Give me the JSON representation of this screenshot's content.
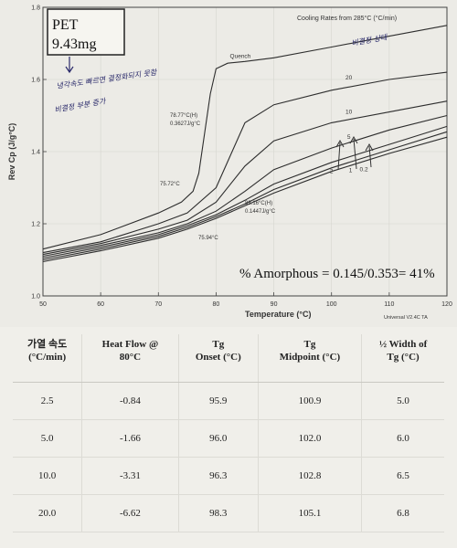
{
  "chart_data": {
    "type": "line",
    "title": "Cooling Rates from 285°C (°C/min)",
    "xlabel": "Temperature (°C)",
    "ylabel": "Rev Cp (J/g°C)",
    "xlim": [
      50,
      120
    ],
    "ylim": [
      1.0,
      1.8
    ],
    "x_ticks": [
      "50",
      "60",
      "70",
      "80",
      "90",
      "100",
      "110",
      "120"
    ],
    "y_ticks": [
      "1.0",
      "1.2",
      "1.4",
      "1.6",
      "1.8"
    ],
    "footer": "Universal V2.4C TA",
    "sample_box": {
      "line1": "PET",
      "line2": "9.43mg"
    },
    "handwritten_notes": [
      "냉각속도 빠르면 결정화되지 못함",
      "비결정 부분 증가"
    ],
    "quench_note": "비결정 상태",
    "amorphous_text": "% Amorphous = 0.145/0.353= 41%",
    "annotations": {
      "tg_quench": "78.77°C(H)",
      "tg_quench_dcp": "0.3627J/g°C",
      "onset_quench": "75.72°C",
      "tg_slow": "83.16°C(H)",
      "tg_slow_dcp": "0.1447J/g°C",
      "onset_slow": "75.94°C"
    },
    "series": [
      {
        "name": "Quench",
        "x": [
          50,
          60,
          70,
          74,
          76,
          77,
          78,
          79,
          80,
          82,
          85,
          90,
          100,
          110,
          120
        ],
        "y": [
          1.13,
          1.17,
          1.23,
          1.26,
          1.29,
          1.34,
          1.45,
          1.56,
          1.63,
          1.645,
          1.65,
          1.66,
          1.69,
          1.72,
          1.75
        ]
      },
      {
        "name": "20",
        "x": [
          50,
          60,
          70,
          75,
          80,
          85,
          90,
          100,
          110,
          120
        ],
        "y": [
          1.12,
          1.15,
          1.2,
          1.23,
          1.3,
          1.48,
          1.53,
          1.57,
          1.6,
          1.62
        ]
      },
      {
        "name": "10",
        "x": [
          50,
          60,
          70,
          75,
          80,
          85,
          90,
          100,
          110,
          120
        ],
        "y": [
          1.115,
          1.145,
          1.185,
          1.21,
          1.26,
          1.36,
          1.43,
          1.48,
          1.51,
          1.54
        ]
      },
      {
        "name": "5",
        "x": [
          50,
          60,
          70,
          75,
          80,
          85,
          90,
          100,
          110,
          120
        ],
        "y": [
          1.11,
          1.14,
          1.175,
          1.2,
          1.235,
          1.29,
          1.35,
          1.41,
          1.46,
          1.5
        ]
      },
      {
        "name": "2",
        "x": [
          50,
          60,
          70,
          75,
          80,
          85,
          90,
          100,
          110,
          120
        ],
        "y": [
          1.105,
          1.135,
          1.17,
          1.195,
          1.225,
          1.265,
          1.31,
          1.37,
          1.42,
          1.47
        ]
      },
      {
        "name": "1",
        "x": [
          50,
          60,
          70,
          75,
          80,
          85,
          90,
          100,
          110,
          120
        ],
        "y": [
          1.1,
          1.13,
          1.165,
          1.19,
          1.22,
          1.255,
          1.295,
          1.355,
          1.405,
          1.455
        ]
      },
      {
        "name": "0.2",
        "x": [
          50,
          60,
          70,
          75,
          80,
          85,
          90,
          100,
          110,
          120
        ],
        "y": [
          1.095,
          1.125,
          1.16,
          1.185,
          1.215,
          1.25,
          1.285,
          1.345,
          1.395,
          1.44
        ]
      }
    ]
  },
  "table": {
    "headers": [
      [
        "가열 속도",
        "(°C/min)"
      ],
      [
        "Heat Flow @",
        "80°C"
      ],
      [
        "Tg",
        "Onset (°C)"
      ],
      [
        "Tg",
        "Midpoint (°C)"
      ],
      [
        "½ Width of",
        "Tg (°C)"
      ]
    ],
    "rows": [
      [
        "2.5",
        "-0.84",
        "95.9",
        "100.9",
        "5.0"
      ],
      [
        "5.0",
        "-1.66",
        "96.0",
        "102.0",
        "6.0"
      ],
      [
        "10.0",
        "-3.31",
        "96.3",
        "102.8",
        "6.5"
      ],
      [
        "20.0",
        "-6.62",
        "98.3",
        "105.1",
        "6.8"
      ]
    ]
  },
  "colors": {
    "curve": "#2d2d2d",
    "note_ink": "#2b2b6b",
    "panel_bg": "#ecebe6"
  }
}
